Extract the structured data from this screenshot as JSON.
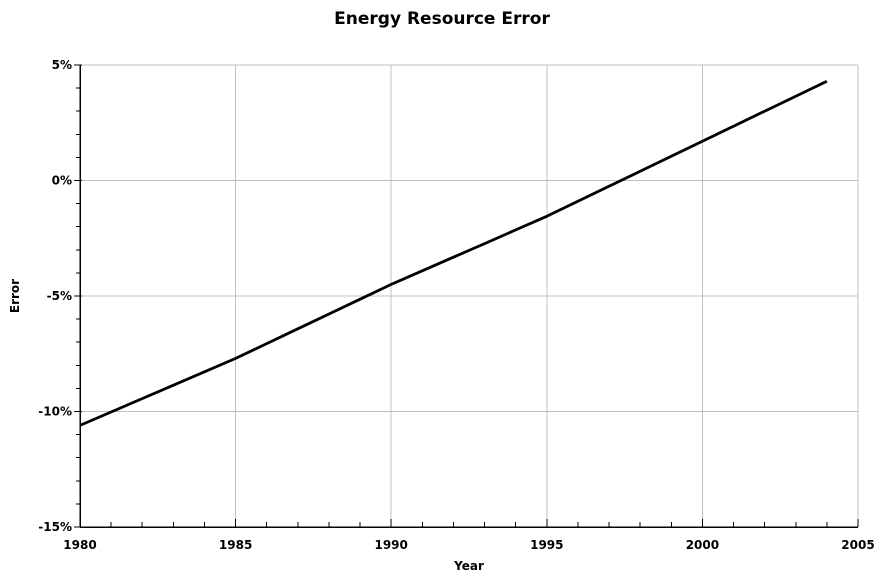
{
  "window": {
    "background": "#ffffff"
  },
  "chart_data": {
    "type": "line",
    "title": "Energy Resource Error",
    "xlabel": "Year",
    "ylabel": "Error",
    "xlim": [
      1980,
      2005
    ],
    "ylim": [
      -15,
      5
    ],
    "x_major_ticks": [
      1980,
      1985,
      1990,
      1995,
      2000,
      2005
    ],
    "x_tick_labels": [
      "1980",
      "1985",
      "1990",
      "1995",
      "2000",
      "2005"
    ],
    "x_minor_step": 1,
    "y_major_ticks": [
      5,
      0,
      -5,
      -10,
      -15
    ],
    "y_tick_labels": [
      "5%",
      "0%",
      "-5%",
      "-10%",
      "-15%"
    ],
    "y_minor_step": 1,
    "grid": true,
    "legend": "none",
    "colors": {
      "line": "#000000",
      "grid": "#c0c0c0",
      "axis": "#000000",
      "text": "#000000",
      "background": "#ffffff"
    },
    "series": [
      {
        "name": "Error",
        "x": [
          1980,
          1981,
          1982,
          1983,
          1984,
          1985,
          1986,
          1987,
          1988,
          1989,
          1990,
          1991,
          1992,
          1993,
          1994,
          1995,
          1996,
          1997,
          1998,
          1999,
          2000,
          2001,
          2002,
          2003,
          2004
        ],
        "values": [
          -10.6,
          -10.02,
          -9.44,
          -8.86,
          -8.28,
          -7.7,
          -7.06,
          -6.42,
          -5.78,
          -5.14,
          -4.5,
          -3.91,
          -3.32,
          -2.73,
          -2.14,
          -1.55,
          -0.9,
          -0.25,
          0.4,
          1.05,
          1.7,
          2.35,
          3.0,
          3.65,
          4.3
        ]
      }
    ]
  }
}
